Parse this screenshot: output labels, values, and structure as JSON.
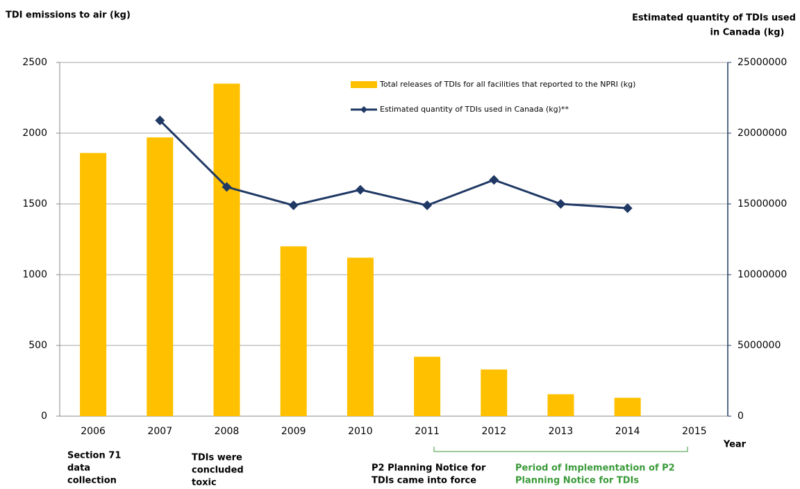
{
  "chart_data": {
    "type": "bar",
    "y_title": "TDI emissions to air (kg)",
    "y2_title": [
      "Estimated quantity of TDIs used",
      "in Canada (kg)"
    ],
    "x_title": "Year",
    "categories": [
      "2006",
      "2007",
      "2008",
      "2009",
      "2010",
      "2011",
      "2012",
      "2013",
      "2014",
      "2015"
    ],
    "series": [
      {
        "name": "Total releases of TDIs for all facilities that reported to the NPRI (kg)",
        "type": "bar",
        "color": "#ffc000",
        "values": [
          1860,
          1970,
          2350,
          1200,
          1120,
          420,
          330,
          155,
          130,
          null
        ]
      },
      {
        "name": "Estimated quantity of TDIs used in Canada (kg)**",
        "type": "line",
        "axis": "y2",
        "color": "#1f3864",
        "values": [
          null,
          20900000,
          16200000,
          14900000,
          16000000,
          14900000,
          16700000,
          15000000,
          14700000,
          null
        ]
      }
    ],
    "ylim": [
      0,
      2500
    ],
    "yticks": [
      0,
      500,
      1000,
      1500,
      2000,
      2500
    ],
    "y2lim": [
      0,
      25000000
    ],
    "y2ticks": [
      0,
      5000000,
      10000000,
      15000000,
      20000000,
      25000000
    ],
    "grid": true,
    "legend": "top",
    "annotations": [
      {
        "lines": [
          "Section 71",
          "data",
          "collection"
        ],
        "color": "#000000"
      },
      {
        "lines": [
          "TDIs were",
          "concluded",
          "toxic"
        ],
        "color": "#000000"
      },
      {
        "lines": [
          "P2 Planning Notice for",
          "TDIs came into force"
        ],
        "color": "#000000"
      },
      {
        "lines": [
          "Period of Implementation of P2",
          "Planning Notice for TDIs"
        ],
        "color": "#3a9a3a"
      }
    ]
  }
}
